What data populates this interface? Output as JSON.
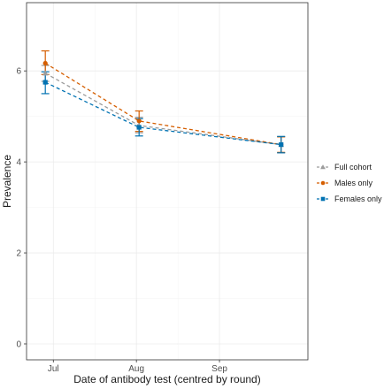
{
  "chart_data": {
    "type": "line",
    "xlabel": "Date of antibody test (centred by round)",
    "ylabel": "Prevalence",
    "x_ticks": [
      "Jul",
      "Aug",
      "Sep"
    ],
    "y_ticks": [
      0,
      2,
      4,
      6
    ],
    "xlim": [
      "2020-06-21",
      "2020-10-04"
    ],
    "ylim": [
      -0.35,
      7.5
    ],
    "grid": true,
    "legend_position": "right",
    "line_style": "dashed",
    "x": [
      "2020-06-28",
      "2020-08-02",
      "2020-09-24"
    ],
    "series": [
      {
        "name": "Full cohort",
        "color": "#9c9c9c",
        "marker": "triangle",
        "values": [
          5.95,
          4.8,
          4.38
        ],
        "lower": [
          5.77,
          4.64,
          4.2
        ],
        "upper": [
          6.12,
          4.98,
          4.55
        ]
      },
      {
        "name": "Males only",
        "color": "#d55e00",
        "marker": "circle",
        "values": [
          6.17,
          4.9,
          4.38
        ],
        "lower": [
          5.92,
          4.67,
          4.21
        ],
        "upper": [
          6.44,
          5.12,
          4.55
        ]
      },
      {
        "name": "Females only",
        "color": "#0072b2",
        "marker": "square",
        "values": [
          5.75,
          4.76,
          4.38
        ],
        "lower": [
          5.5,
          4.57,
          4.2
        ],
        "upper": [
          5.98,
          4.95,
          4.56
        ]
      }
    ]
  }
}
